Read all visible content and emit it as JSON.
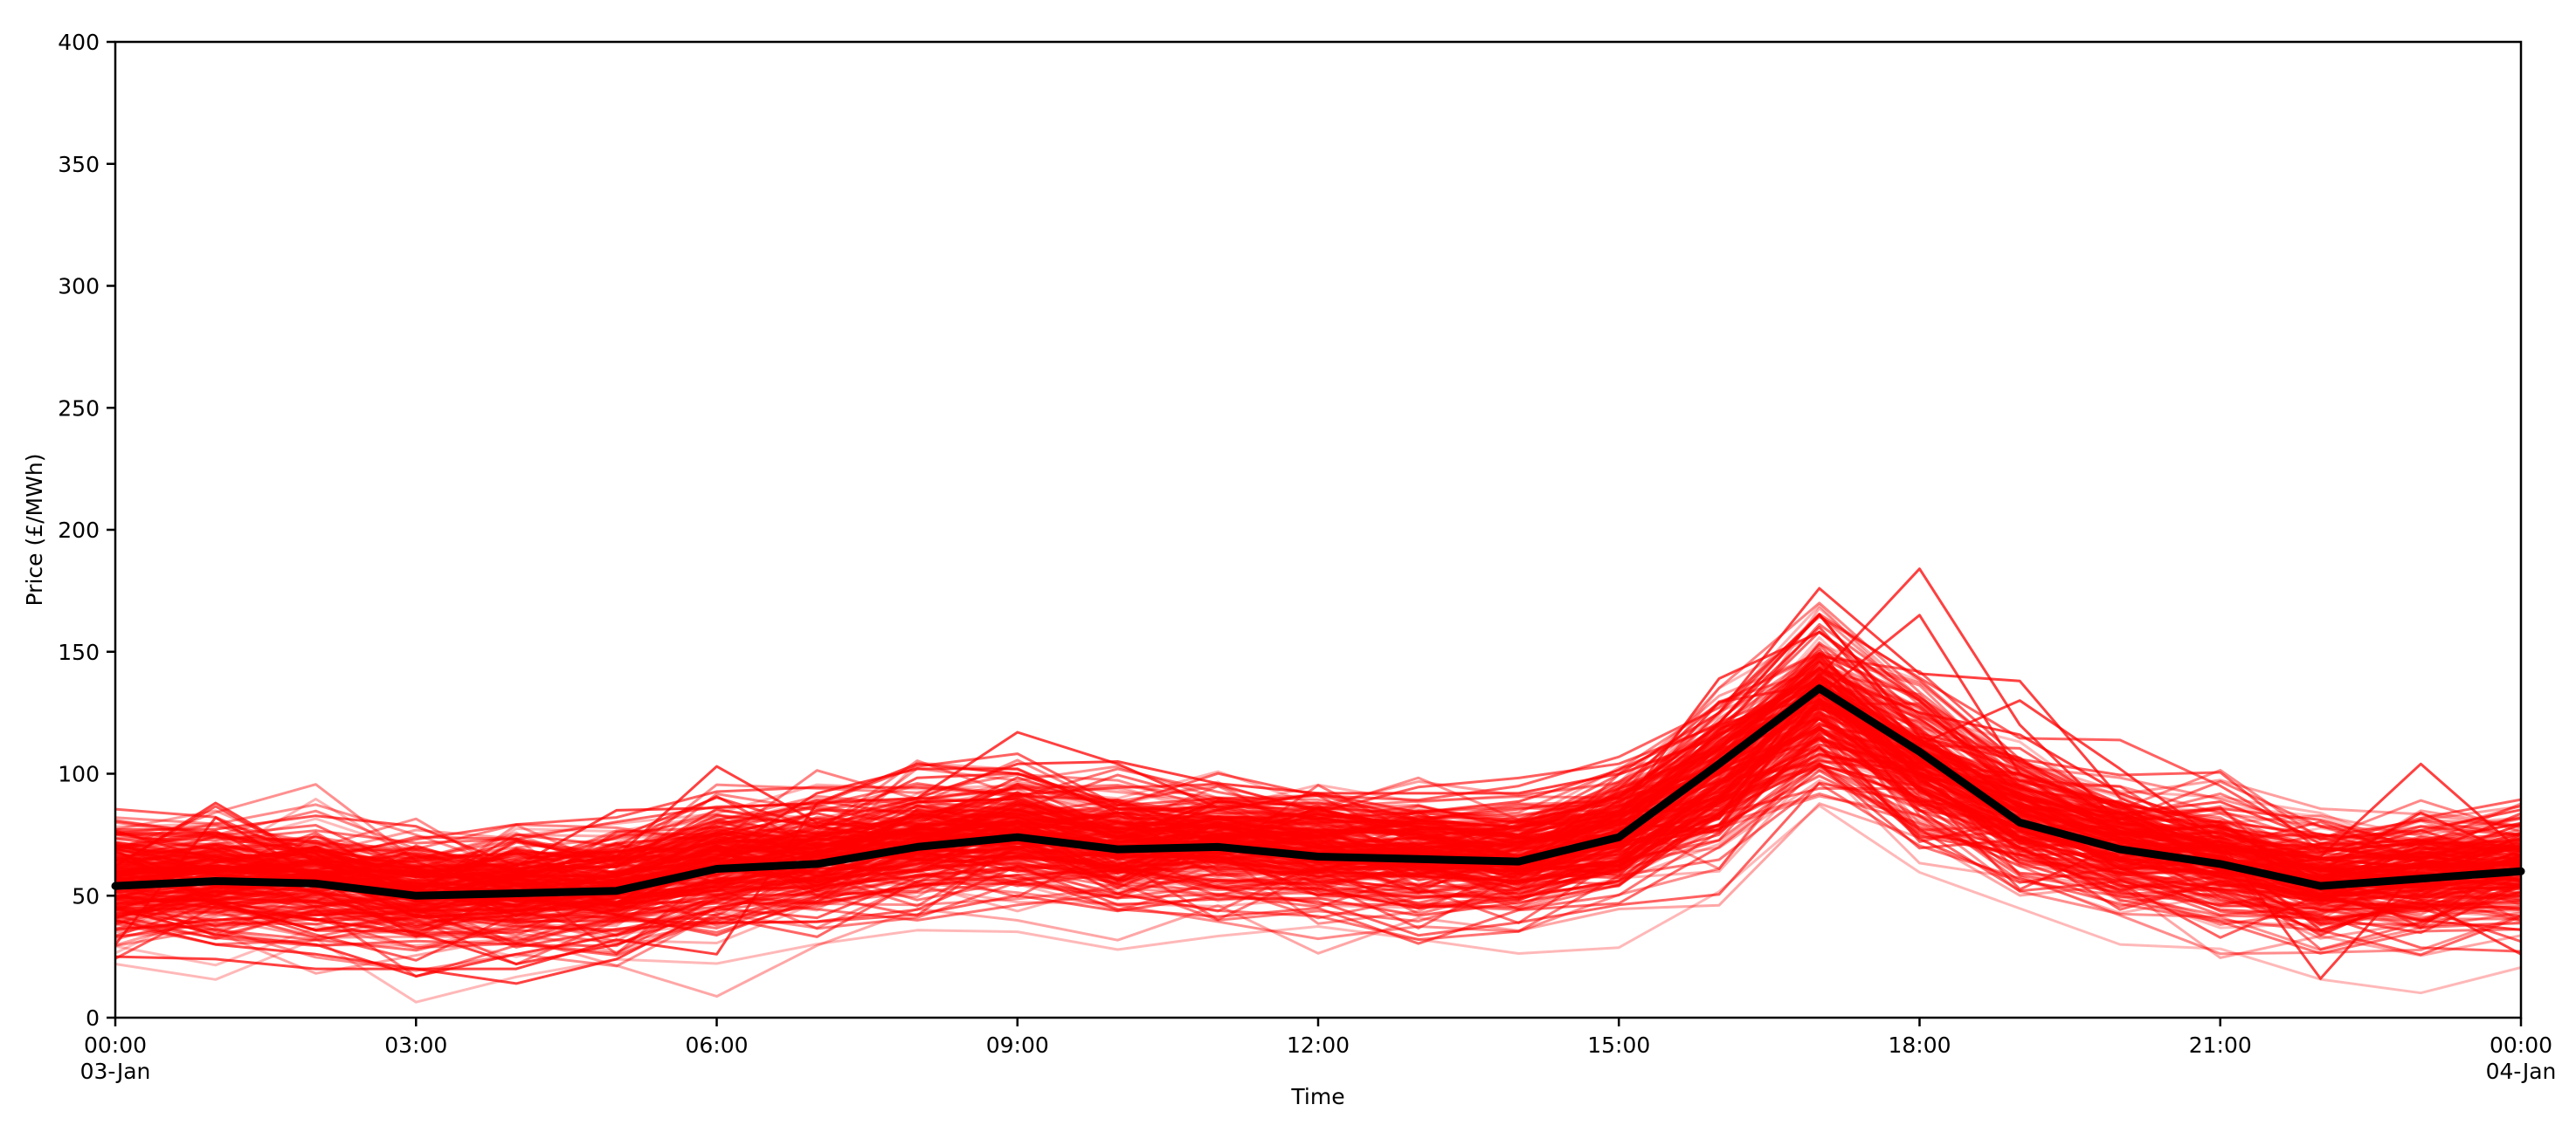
{
  "chart_data": {
    "type": "line",
    "title": "",
    "xlabel": "Time",
    "ylabel": "Price (£/MWh)",
    "xlim": [
      0,
      24
    ],
    "ylim": [
      0,
      400
    ],
    "grid": false,
    "legend": "none",
    "x_ticks": [
      {
        "hour": 0,
        "label": "00:00",
        "sublabel": "03-Jan"
      },
      {
        "hour": 3,
        "label": "03:00",
        "sublabel": ""
      },
      {
        "hour": 6,
        "label": "06:00",
        "sublabel": ""
      },
      {
        "hour": 9,
        "label": "09:00",
        "sublabel": ""
      },
      {
        "hour": 12,
        "label": "12:00",
        "sublabel": ""
      },
      {
        "hour": 15,
        "label": "15:00",
        "sublabel": ""
      },
      {
        "hour": 18,
        "label": "18:00",
        "sublabel": ""
      },
      {
        "hour": 21,
        "label": "21:00",
        "sublabel": ""
      },
      {
        "hour": 24,
        "label": "00:00",
        "sublabel": "04-Jan"
      }
    ],
    "y_ticks": [
      0,
      50,
      100,
      150,
      200,
      250,
      300,
      350,
      400
    ],
    "x": [
      0,
      1,
      2,
      3,
      4,
      5,
      6,
      7,
      8,
      9,
      10,
      11,
      12,
      13,
      14,
      15,
      16,
      17,
      18,
      19,
      20,
      21,
      22,
      23,
      24
    ],
    "mean_series": {
      "color": "#000000",
      "values": [
        54,
        56,
        55,
        50,
        51,
        52,
        61,
        63,
        70,
        74,
        69,
        70,
        66,
        65,
        64,
        74,
        104,
        135,
        109,
        80,
        69,
        63,
        54,
        57,
        60
      ]
    },
    "ensemble_color": "#ff0000",
    "ensemble_members": 220,
    "ensemble_series": [
      {
        "values": [
          62,
          88,
          64,
          58,
          60,
          62,
          72,
          73,
          77,
          80,
          76,
          79,
          77,
          76,
          75,
          84,
          139,
          158,
          130,
          95,
          79,
          70,
          65,
          67,
          70
        ]
      },
      {
        "values": [
          30,
          82,
          58,
          54,
          52,
          58,
          66,
          92,
          102,
          102,
          84,
          80,
          76,
          77,
          74,
          88,
          118,
          140,
          184,
          120,
          80,
          72,
          60,
          84,
          66
        ]
      },
      {
        "values": [
          55,
          60,
          58,
          62,
          62,
          85,
          86,
          88,
          90,
          104,
          105,
          96,
          92,
          92,
          92,
          100,
          125,
          176,
          141,
          138,
          90,
          75,
          68,
          72,
          70
        ]
      },
      {
        "values": [
          58,
          62,
          60,
          60,
          61,
          66,
          103,
          80,
          90,
          117,
          104,
          86,
          82,
          84,
          80,
          90,
          120,
          132,
          165,
          100,
          86,
          70,
          66,
          104,
          68
        ]
      },
      {
        "values": [
          25,
          24,
          20,
          20,
          20,
          32,
          26,
          88,
          104,
          100,
          88,
          82,
          80,
          81,
          78,
          86,
          110,
          143,
          125,
          116,
          92,
          78,
          70,
          64,
          60
        ]
      },
      {
        "values": [
          50,
          45,
          40,
          35,
          22,
          30,
          45,
          54,
          65,
          70,
          66,
          68,
          64,
          62,
          60,
          64,
          96,
          120,
          112,
          130,
          102,
          72,
          16,
          62,
          56
        ]
      },
      {
        "values": [
          40,
          30,
          26,
          20,
          14,
          24,
          45,
          52,
          60,
          68,
          66,
          66,
          62,
          62,
          60,
          64,
          92,
          112,
          104,
          92,
          78,
          68,
          36,
          48,
          26
        ]
      },
      {
        "values": [
          45,
          34,
          30,
          17,
          26,
          34,
          50,
          58,
          63,
          66,
          62,
          64,
          60,
          58,
          56,
          60,
          88,
          108,
          100,
          88,
          74,
          66,
          50,
          40,
          36
        ]
      },
      {
        "values": [
          72,
          66,
          60,
          55,
          54,
          56,
          62,
          66,
          70,
          76,
          72,
          72,
          68,
          67,
          66,
          72,
          100,
          118,
          100,
          86,
          72,
          66,
          56,
          60,
          64
        ]
      },
      {
        "values": [
          36,
          40,
          42,
          44,
          44,
          46,
          52,
          54,
          58,
          62,
          60,
          62,
          58,
          58,
          56,
          62,
          84,
          104,
          90,
          78,
          64,
          58,
          48,
          50,
          54
        ]
      }
    ]
  }
}
